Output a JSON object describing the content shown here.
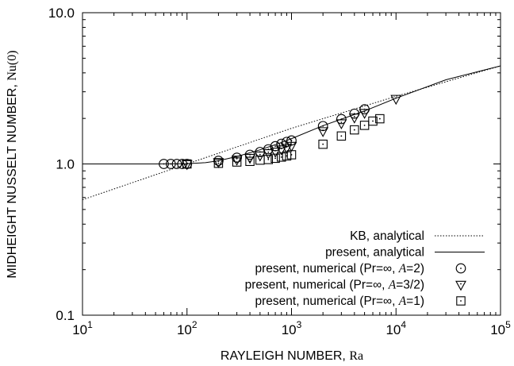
{
  "chart_data": {
    "type": "scatter",
    "x_scale": "log",
    "y_scale": "log",
    "xlim": [
      10,
      100000
    ],
    "ylim": [
      0.1,
      10
    ],
    "x_ticks": [
      {
        "value": 10,
        "base": "10",
        "exp": "1"
      },
      {
        "value": 100,
        "base": "10",
        "exp": "2"
      },
      {
        "value": 1000,
        "base": "10",
        "exp": "3"
      },
      {
        "value": 10000,
        "base": "10",
        "exp": "4"
      },
      {
        "value": 100000,
        "base": "10",
        "exp": "5"
      }
    ],
    "y_ticks": [
      {
        "value": 0.1,
        "label": "0.1"
      },
      {
        "value": 1,
        "label": "1.0"
      },
      {
        "value": 10,
        "label": "10.0"
      }
    ],
    "xlabel": {
      "text": "RAYLEIGH NUMBER, ",
      "symbol": "Ra"
    },
    "ylabel": {
      "text": "MIDHEIGHT NUSSELT NUMBER, ",
      "symbol": "Nu(0)"
    },
    "legend_position": "bottom-right",
    "series": [
      {
        "name": "KB, analytical",
        "style": "dotted-line",
        "color": "#000000",
        "x": [
          10,
          100,
          1000,
          10000,
          100000
        ],
        "y": [
          0.58,
          1.0,
          1.72,
          2.8,
          4.45
        ]
      },
      {
        "name": "present, analytical",
        "style": "solid-line",
        "color": "#000000",
        "x": [
          10,
          50,
          100,
          150,
          200,
          300,
          500,
          700,
          1000,
          2000,
          5000,
          10000,
          30000,
          100000
        ],
        "y": [
          1.0,
          1.0,
          1.005,
          1.02,
          1.05,
          1.12,
          1.24,
          1.34,
          1.47,
          1.79,
          2.24,
          2.72,
          3.6,
          4.45
        ]
      },
      {
        "name_parts": [
          "present, numerical (Pr=∞, ",
          "A",
          "=2)"
        ],
        "marker": "circle",
        "x": [
          60,
          70,
          80,
          90,
          100,
          200,
          300,
          400,
          500,
          600,
          700,
          800,
          900,
          1000,
          2000,
          3000,
          4000,
          5000
        ],
        "y": [
          1.0,
          1.0,
          1.0,
          1.0,
          1.0,
          1.05,
          1.1,
          1.15,
          1.2,
          1.25,
          1.31,
          1.36,
          1.4,
          1.43,
          1.78,
          1.98,
          2.15,
          2.3
        ]
      },
      {
        "name_parts": [
          "present, numerical (Pr=∞, ",
          "A",
          "=3/2)"
        ],
        "marker": "triangle-down",
        "x": [
          100,
          200,
          300,
          400,
          500,
          600,
          700,
          800,
          900,
          1000,
          2000,
          3000,
          4000,
          5000,
          10000
        ],
        "y": [
          1.0,
          1.03,
          1.07,
          1.1,
          1.14,
          1.18,
          1.21,
          1.25,
          1.28,
          1.32,
          1.65,
          1.86,
          2.03,
          2.18,
          2.7
        ]
      },
      {
        "name_parts": [
          "present, numerical (Pr=∞, ",
          "A",
          "=1)"
        ],
        "marker": "square",
        "x": [
          100,
          200,
          300,
          400,
          500,
          600,
          700,
          800,
          900,
          1000,
          2000,
          3000,
          4000,
          5000,
          6000,
          7000
        ],
        "y": [
          1.0,
          1.01,
          1.03,
          1.04,
          1.06,
          1.07,
          1.09,
          1.11,
          1.13,
          1.15,
          1.35,
          1.53,
          1.68,
          1.8,
          1.92,
          1.99
        ]
      }
    ]
  }
}
